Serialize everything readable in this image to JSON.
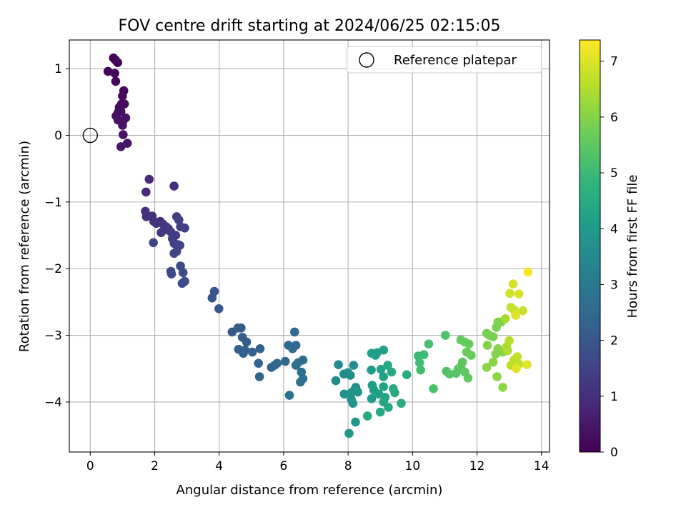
{
  "chart_data": {
    "type": "scatter",
    "title": "FOV centre drift starting at 2024/06/25 02:15:05",
    "xlabel": "Angular distance from reference (arcmin)",
    "ylabel": "Rotation from reference (arcmin)",
    "xlim": [
      -0.65,
      14.25
    ],
    "ylim": [
      -4.75,
      1.43
    ],
    "xticks": [
      0,
      2,
      4,
      6,
      8,
      10,
      12,
      14
    ],
    "yticks": [
      -4,
      -3,
      -2,
      -1,
      0,
      1
    ],
    "grid": true,
    "legend": {
      "location": "upper-right",
      "entries": [
        {
          "label": "Reference platepar",
          "marker": "open-circle"
        }
      ]
    },
    "reference_point": {
      "x": 0,
      "y": 0
    },
    "colorbar": {
      "label": "Hours from first FF file",
      "colormap": "viridis",
      "range": [
        0,
        7.38
      ],
      "ticks": [
        0,
        1,
        2,
        3,
        4,
        5,
        6,
        7
      ]
    },
    "colormap_stops": [
      "#440154",
      "#482878",
      "#3e4989",
      "#31688e",
      "#26828e",
      "#1f9e89",
      "#35b779",
      "#6ece58",
      "#b5de2b",
      "#fde725"
    ],
    "point_encoding": "x, y, hours",
    "points": [
      [
        0.72,
        1.16,
        0.02
      ],
      [
        0.78,
        1.13,
        0.05
      ],
      [
        0.85,
        1.09,
        0.08
      ],
      [
        0.55,
        0.96,
        0.1
      ],
      [
        0.76,
        0.93,
        0.12
      ],
      [
        0.79,
        0.81,
        0.15
      ],
      [
        1.04,
        0.67,
        0.18
      ],
      [
        1.0,
        0.59,
        0.2
      ],
      [
        0.97,
        0.47,
        0.22
      ],
      [
        1.06,
        0.47,
        0.24
      ],
      [
        0.9,
        0.42,
        0.26
      ],
      [
        0.95,
        0.36,
        0.28
      ],
      [
        0.86,
        0.34,
        0.3
      ],
      [
        0.8,
        0.29,
        0.32
      ],
      [
        1.1,
        0.26,
        0.34
      ],
      [
        0.86,
        0.23,
        0.36
      ],
      [
        1.02,
        0.22,
        0.38
      ],
      [
        1.0,
        0.15,
        0.4
      ],
      [
        1.02,
        0.01,
        0.42
      ],
      [
        1.15,
        -0.12,
        0.45
      ],
      [
        0.95,
        -0.17,
        0.48
      ],
      [
        1.83,
        -0.66,
        0.9
      ],
      [
        1.73,
        -0.85,
        0.92
      ],
      [
        2.6,
        -0.76,
        0.95
      ],
      [
        1.71,
        -1.14,
        1.0
      ],
      [
        1.74,
        -1.22,
        1.02
      ],
      [
        1.92,
        -1.21,
        1.05
      ],
      [
        1.97,
        -1.29,
        1.08
      ],
      [
        2.05,
        -1.32,
        1.1
      ],
      [
        2.17,
        -1.29,
        1.12
      ],
      [
        2.25,
        -1.33,
        1.15
      ],
      [
        2.35,
        -1.37,
        1.18
      ],
      [
        2.42,
        -1.4,
        1.2
      ],
      [
        2.2,
        -1.46,
        1.22
      ],
      [
        2.3,
        -1.42,
        1.25
      ],
      [
        2.5,
        -1.45,
        1.28
      ],
      [
        2.55,
        -1.55,
        1.3
      ],
      [
        2.65,
        -1.5,
        1.32
      ],
      [
        2.68,
        -1.22,
        1.35
      ],
      [
        2.75,
        -1.27,
        1.38
      ],
      [
        2.8,
        -1.37,
        1.4
      ],
      [
        2.93,
        -1.39,
        1.42
      ],
      [
        2.6,
        -1.62,
        1.45
      ],
      [
        2.72,
        -1.64,
        1.48
      ],
      [
        2.78,
        -1.65,
        1.5
      ],
      [
        2.6,
        -1.77,
        1.52
      ],
      [
        2.68,
        -1.74,
        1.55
      ],
      [
        1.96,
        -1.61,
        1.58
      ],
      [
        2.8,
        -1.96,
        1.6
      ],
      [
        2.5,
        -2.04,
        1.62
      ],
      [
        2.52,
        -2.08,
        1.65
      ],
      [
        2.88,
        -2.06,
        1.68
      ],
      [
        2.85,
        -2.22,
        1.7
      ],
      [
        2.93,
        -2.19,
        1.72
      ],
      [
        3.85,
        -2.34,
        2.0
      ],
      [
        3.78,
        -2.44,
        2.02
      ],
      [
        3.99,
        -2.6,
        2.05
      ],
      [
        4.4,
        -2.95,
        2.1
      ],
      [
        4.58,
        -2.89,
        2.12
      ],
      [
        4.68,
        -2.89,
        2.15
      ],
      [
        4.72,
        -3.03,
        2.18
      ],
      [
        4.85,
        -3.1,
        2.2
      ],
      [
        4.6,
        -3.21,
        2.22
      ],
      [
        4.75,
        -3.27,
        2.25
      ],
      [
        4.8,
        -3.22,
        2.28
      ],
      [
        5.03,
        -3.25,
        2.3
      ],
      [
        5.27,
        -3.2,
        2.32
      ],
      [
        5.22,
        -3.42,
        2.35
      ],
      [
        5.25,
        -3.62,
        2.38
      ],
      [
        5.62,
        -3.48,
        2.4
      ],
      [
        5.72,
        -3.45,
        2.42
      ],
      [
        5.8,
        -3.42,
        2.45
      ],
      [
        6.05,
        -3.39,
        2.48
      ],
      [
        6.15,
        -3.15,
        2.5
      ],
      [
        6.28,
        -3.2,
        2.52
      ],
      [
        6.38,
        -3.15,
        2.55
      ],
      [
        6.34,
        -2.95,
        2.58
      ],
      [
        6.45,
        -3.41,
        2.6
      ],
      [
        6.6,
        -3.37,
        2.62
      ],
      [
        6.38,
        -3.45,
        2.65
      ],
      [
        6.55,
        -3.55,
        2.68
      ],
      [
        6.6,
        -3.65,
        2.7
      ],
      [
        6.52,
        -3.7,
        2.72
      ],
      [
        6.18,
        -3.9,
        2.75
      ],
      [
        7.62,
        -3.68,
        3.5
      ],
      [
        7.7,
        -3.44,
        3.55
      ],
      [
        7.87,
        -3.58,
        3.6
      ],
      [
        8.0,
        -3.56,
        3.62
      ],
      [
        8.07,
        -3.6,
        3.65
      ],
      [
        8.17,
        -3.45,
        3.68
      ],
      [
        8.24,
        -3.78,
        3.7
      ],
      [
        8.2,
        -3.82,
        3.72
      ],
      [
        8.1,
        -3.86,
        3.75
      ],
      [
        7.88,
        -3.88,
        3.78
      ],
      [
        8.3,
        -3.85,
        3.8
      ],
      [
        8.1,
        -3.96,
        3.82
      ],
      [
        8.15,
        -4.02,
        3.85
      ],
      [
        8.23,
        -4.3,
        3.88
      ],
      [
        8.03,
        -4.47,
        3.9
      ],
      [
        8.72,
        -3.52,
        4.0
      ],
      [
        8.75,
        -3.75,
        4.02
      ],
      [
        8.8,
        -3.82,
        4.05
      ],
      [
        8.73,
        -3.95,
        4.08
      ],
      [
        8.85,
        -3.3,
        4.1
      ],
      [
        8.73,
        -3.27,
        4.12
      ],
      [
        8.9,
        -3.26,
        4.15
      ],
      [
        9.1,
        -3.22,
        4.18
      ],
      [
        8.95,
        -3.88,
        4.2
      ],
      [
        9.02,
        -3.51,
        4.22
      ],
      [
        9.1,
        -3.62,
        4.25
      ],
      [
        9.1,
        -3.77,
        4.28
      ],
      [
        9.15,
        -3.93,
        4.3
      ],
      [
        9.1,
        -4.0,
        4.32
      ],
      [
        9.25,
        -4.08,
        4.35
      ],
      [
        9.0,
        -4.15,
        4.38
      ],
      [
        8.6,
        -4.21,
        4.4
      ],
      [
        9.23,
        -3.45,
        4.42
      ],
      [
        9.35,
        -3.55,
        4.45
      ],
      [
        9.4,
        -3.8,
        4.48
      ],
      [
        9.45,
        -3.86,
        4.5
      ],
      [
        9.65,
        -4.02,
        4.52
      ],
      [
        9.82,
        -3.59,
        4.55
      ],
      [
        10.18,
        -3.31,
        5.0
      ],
      [
        10.35,
        -3.29,
        5.05
      ],
      [
        10.22,
        -3.41,
        5.1
      ],
      [
        10.25,
        -3.52,
        5.15
      ],
      [
        10.5,
        -3.13,
        5.2
      ],
      [
        10.65,
        -3.8,
        5.25
      ],
      [
        11.02,
        -3.0,
        5.3
      ],
      [
        11.05,
        -3.54,
        5.35
      ],
      [
        11.15,
        -3.58,
        5.38
      ],
      [
        11.35,
        -3.57,
        5.4
      ],
      [
        11.42,
        -3.5,
        5.42
      ],
      [
        11.5,
        -3.47,
        5.45
      ],
      [
        11.55,
        -3.4,
        5.48
      ],
      [
        11.62,
        -3.55,
        5.5
      ],
      [
        11.72,
        -3.64,
        5.52
      ],
      [
        11.5,
        -3.07,
        5.55
      ],
      [
        11.62,
        -3.1,
        5.58
      ],
      [
        11.75,
        -3.13,
        5.6
      ],
      [
        11.68,
        -3.25,
        5.62
      ],
      [
        11.82,
        -3.3,
        5.65
      ],
      [
        12.3,
        -2.97,
        5.8
      ],
      [
        12.38,
        -3.0,
        5.82
      ],
      [
        12.5,
        -3.02,
        5.85
      ],
      [
        12.6,
        -2.88,
        5.88
      ],
      [
        12.65,
        -2.8,
        5.9
      ],
      [
        12.75,
        -2.8,
        5.92
      ],
      [
        12.32,
        -3.15,
        5.95
      ],
      [
        12.58,
        -3.28,
        5.98
      ],
      [
        12.65,
        -3.2,
        6.0
      ],
      [
        12.8,
        -3.25,
        6.02
      ],
      [
        12.5,
        -3.4,
        6.05
      ],
      [
        12.3,
        -3.48,
        6.08
      ],
      [
        12.62,
        -3.62,
        6.1
      ],
      [
        12.8,
        -3.78,
        6.12
      ],
      [
        12.88,
        -2.75,
        6.4
      ],
      [
        12.92,
        -3.17,
        6.45
      ],
      [
        12.95,
        -3.23,
        6.5
      ],
      [
        13.0,
        -3.08,
        6.55
      ],
      [
        13.15,
        -3.37,
        6.6
      ],
      [
        13.05,
        -3.45,
        6.65
      ],
      [
        13.25,
        -3.32,
        6.68
      ],
      [
        13.3,
        -3.43,
        6.7
      ],
      [
        13.05,
        -2.58,
        6.75
      ],
      [
        13.15,
        -2.62,
        6.78
      ],
      [
        13.42,
        -2.63,
        6.8
      ],
      [
        13.02,
        -2.37,
        6.85
      ],
      [
        13.12,
        -2.23,
        6.9
      ],
      [
        13.3,
        -2.38,
        6.95
      ],
      [
        13.2,
        -2.7,
        7.0
      ],
      [
        13.55,
        -3.44,
        7.05
      ],
      [
        13.22,
        -3.5,
        7.1
      ],
      [
        13.58,
        -2.05,
        7.3
      ]
    ]
  }
}
